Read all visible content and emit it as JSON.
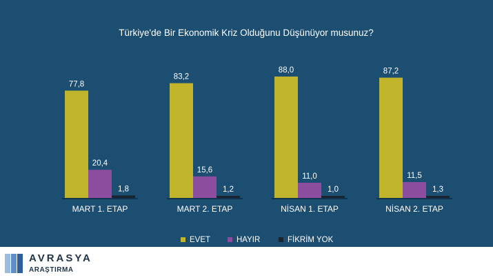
{
  "chart_data": {
    "type": "bar",
    "title": "Türkiye'de Bir Ekonomik Kriz Olduğunu Düşünüyor musunuz?",
    "categories": [
      "MART 1. ETAP",
      "MART 2. ETAP",
      "NİSAN 1. ETAP",
      "NİSAN 2. ETAP"
    ],
    "series": [
      {
        "name": "EVET",
        "color": "#c2b52e",
        "values": [
          77.8,
          83.2,
          88.0,
          87.2
        ],
        "labels": [
          "77,8",
          "83,2",
          "88,0",
          "87,2"
        ]
      },
      {
        "name": "HAYIR",
        "color": "#8d4d9e",
        "values": [
          20.4,
          15.6,
          11.0,
          11.5
        ],
        "labels": [
          "20,4",
          "15,6",
          "11,0",
          "11,5"
        ]
      },
      {
        "name": "FİKRİM YOK",
        "color": "#1a2430",
        "values": [
          1.8,
          1.2,
          1.0,
          1.3
        ],
        "labels": [
          "1,8",
          "1,2",
          "1,0",
          "1,3"
        ]
      }
    ],
    "ylim": [
      0,
      100
    ],
    "xlabel": "",
    "ylabel": "",
    "grid": false,
    "legend_position": "bottom"
  },
  "colors": {
    "background": "#1c4e72",
    "text": "#ffffff",
    "baseline": "#0f3450"
  },
  "logo": {
    "name": "AVRASYA",
    "subtitle": "ARAŞTIRMA",
    "stripe_colors": [
      "#9bbcdc",
      "#5f8fc4",
      "#2e5f9c"
    ]
  }
}
